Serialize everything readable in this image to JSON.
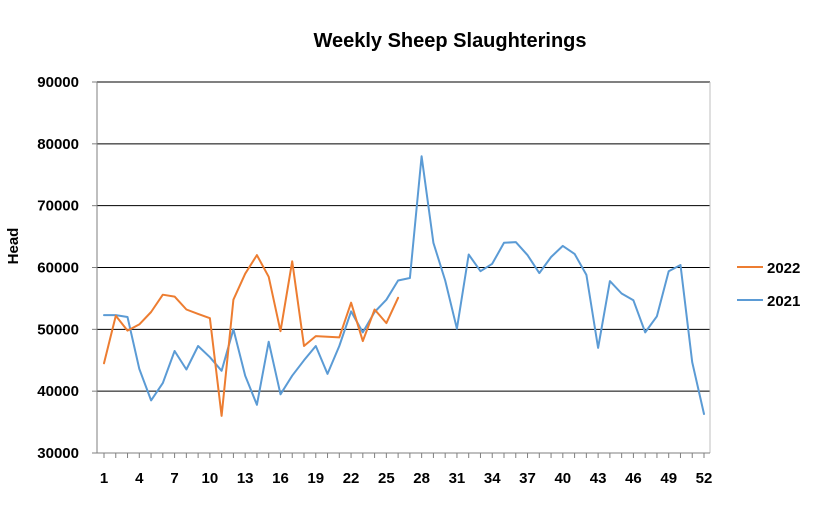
{
  "chart_data": {
    "type": "line",
    "title": "Weekly Sheep Slaughterings",
    "xlabel": "",
    "ylabel": "Head",
    "xlim": [
      1,
      52
    ],
    "ylim": [
      30000,
      90000
    ],
    "y_ticks": [
      30000,
      40000,
      50000,
      60000,
      70000,
      80000,
      90000
    ],
    "x_ticks": [
      1,
      4,
      7,
      10,
      13,
      16,
      19,
      22,
      25,
      28,
      31,
      34,
      37,
      40,
      43,
      46,
      49,
      52
    ],
    "grid": "horizontal",
    "legend_position": "right",
    "series": [
      {
        "name": "2022",
        "color": "#ED7D31",
        "x": [
          1,
          2,
          3,
          4,
          5,
          6,
          7,
          8,
          9,
          10,
          11,
          12,
          13,
          14,
          15,
          16,
          17,
          18,
          19,
          20,
          21,
          22,
          23,
          24,
          25,
          26
        ],
        "values": [
          44500,
          52200,
          49800,
          50800,
          52800,
          55600,
          55300,
          53200,
          52500,
          51800,
          36000,
          54800,
          59000,
          62000,
          58500,
          49700,
          61000,
          47300,
          48900,
          48800,
          48700,
          54300,
          48100,
          53200,
          51000,
          55100
        ]
      },
      {
        "name": "2021",
        "color": "#5B9BD5",
        "x": [
          1,
          2,
          3,
          4,
          5,
          6,
          7,
          8,
          9,
          10,
          11,
          12,
          13,
          14,
          15,
          16,
          17,
          18,
          19,
          20,
          21,
          22,
          23,
          24,
          25,
          26,
          27,
          28,
          29,
          30,
          31,
          32,
          33,
          34,
          35,
          36,
          37,
          38,
          39,
          40,
          41,
          42,
          43,
          44,
          45,
          46,
          47,
          48,
          49,
          50,
          51,
          52
        ],
        "values": [
          52300,
          52300,
          52000,
          43600,
          38500,
          41300,
          46500,
          43500,
          47300,
          45500,
          43300,
          50000,
          42500,
          37800,
          48000,
          39500,
          42500,
          45000,
          47300,
          42800,
          47300,
          52900,
          49500,
          52800,
          54800,
          57900,
          58300,
          78000,
          64000,
          57900,
          50100,
          62100,
          59400,
          60600,
          64000,
          64100,
          62000,
          59100,
          61700,
          63500,
          62200,
          58800,
          47000,
          57800,
          55800,
          54700,
          49500,
          52100,
          59400,
          60400,
          44700,
          36300
        ]
      }
    ]
  }
}
